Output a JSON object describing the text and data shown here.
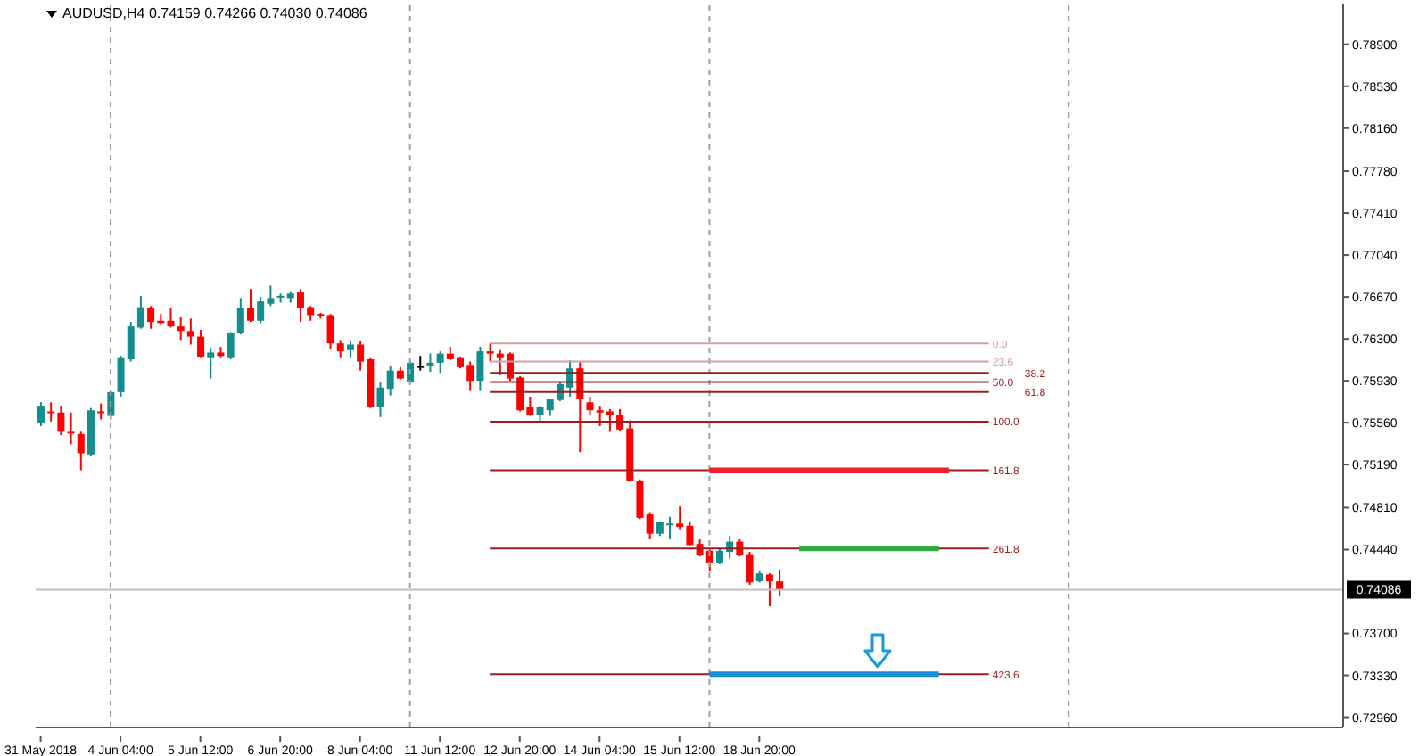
{
  "chart_data": {
    "type": "candlestick",
    "title": "AUDUSD,H4 0.74159 0.74266 0.74030 0.74086",
    "categories": [
      "31 May 2018",
      null,
      null,
      null,
      null,
      null,
      null,
      null,
      "4 Jun 04:00",
      null,
      null,
      null,
      null,
      null,
      null,
      null,
      "5 Jun 12:00",
      null,
      null,
      null,
      null,
      null,
      null,
      null,
      "6 Jun 20:00",
      null,
      null,
      null,
      null,
      null,
      null,
      null,
      "8 Jun 04:00",
      null,
      null,
      null,
      null,
      null,
      null,
      null,
      "11 Jun 12:00",
      null,
      null,
      null,
      null,
      null,
      null,
      null,
      "12 Jun 20:00",
      null,
      null,
      null,
      null,
      null,
      null,
      null,
      "14 Jun 04:00",
      null,
      null,
      null,
      null,
      null,
      null,
      null,
      "15 Jun 12:00",
      null,
      null,
      null,
      null,
      null,
      null,
      null,
      "18 Jun 20:00",
      null,
      null,
      null,
      null,
      null,
      null,
      null,
      null,
      null,
      null,
      null,
      null,
      null,
      null,
      null,
      null,
      null,
      null,
      null,
      null,
      null,
      null,
      null,
      null,
      null,
      null,
      null,
      null,
      null,
      null,
      null,
      null,
      null,
      null,
      null,
      null,
      null,
      null,
      null,
      null,
      null,
      null,
      null,
      null,
      null,
      null,
      null,
      null,
      null,
      null,
      null,
      null,
      null,
      null,
      null,
      null,
      null,
      null
    ],
    "ohlc": [
      [
        0.7556,
        0.7574,
        0.7553,
        0.7571
      ],
      [
        0.7566,
        0.7574,
        0.7557,
        0.7565
      ],
      [
        0.7565,
        0.7571,
        0.7545,
        0.7548
      ],
      [
        0.7548,
        0.7565,
        0.7537,
        0.7547
      ],
      [
        0.7546,
        0.7548,
        0.7514,
        0.7529
      ],
      [
        0.7528,
        0.7569,
        0.7527,
        0.7567
      ],
      [
        0.7566,
        0.7573,
        0.7559,
        0.7565
      ],
      [
        0.7562,
        0.7584,
        0.7559,
        0.7583
      ],
      [
        0.7583,
        0.7615,
        0.7579,
        0.7613
      ],
      [
        0.7612,
        0.7645,
        0.761,
        0.7641
      ],
      [
        0.764,
        0.7668,
        0.7639,
        0.7658
      ],
      [
        0.7657,
        0.7659,
        0.7639,
        0.7645
      ],
      [
        0.7646,
        0.7652,
        0.7643,
        0.7644
      ],
      [
        0.7646,
        0.7657,
        0.764,
        0.7641
      ],
      [
        0.7641,
        0.7649,
        0.7629,
        0.7637
      ],
      [
        0.7637,
        0.7648,
        0.7625,
        0.7632
      ],
      [
        0.7632,
        0.7638,
        0.7613,
        0.7614
      ],
      [
        0.7613,
        0.7622,
        0.7595,
        0.7618
      ],
      [
        0.7618,
        0.7623,
        0.7613,
        0.7615
      ],
      [
        0.7613,
        0.7636,
        0.7612,
        0.7635
      ],
      [
        0.7635,
        0.7666,
        0.7634,
        0.7657
      ],
      [
        0.7657,
        0.7674,
        0.7645,
        0.7646
      ],
      [
        0.7646,
        0.7667,
        0.7644,
        0.7663
      ],
      [
        0.7661,
        0.7677,
        0.7659,
        0.7666
      ],
      [
        0.7667,
        0.767,
        0.7662,
        0.7668
      ],
      [
        0.7666,
        0.7672,
        0.7662,
        0.767
      ],
      [
        0.7671,
        0.7674,
        0.7645,
        0.7657
      ],
      [
        0.7658,
        0.7659,
        0.7646,
        0.7651
      ],
      [
        0.7652,
        0.7653,
        0.7648,
        0.765
      ],
      [
        0.7651,
        0.7652,
        0.7621,
        0.7626
      ],
      [
        0.7626,
        0.7629,
        0.7613,
        0.7619
      ],
      [
        0.762,
        0.7628,
        0.7613,
        0.7625
      ],
      [
        0.7625,
        0.7628,
        0.7602,
        0.761
      ],
      [
        0.7612,
        0.7613,
        0.7569,
        0.757
      ],
      [
        0.757,
        0.7592,
        0.7561,
        0.7587
      ],
      [
        0.7586,
        0.7606,
        0.758,
        0.7602
      ],
      [
        0.7602,
        0.7605,
        0.7594,
        0.7595
      ],
      [
        0.7592,
        0.761,
        0.7591,
        0.7609
      ],
      [
        0.7606,
        0.7615,
        0.7602,
        0.7606
      ],
      [
        0.7606,
        0.7617,
        0.7601,
        0.7609
      ],
      [
        0.7609,
        0.7619,
        0.76,
        0.7617
      ],
      [
        0.7617,
        0.7623,
        0.7611,
        0.7612
      ],
      [
        0.7613,
        0.7614,
        0.7604,
        0.7605
      ],
      [
        0.7607,
        0.761,
        0.7584,
        0.7593
      ],
      [
        0.7593,
        0.7623,
        0.7584,
        0.7619
      ],
      [
        0.7619,
        0.7626,
        0.761,
        0.7617
      ],
      [
        0.7617,
        0.762,
        0.7598,
        0.7613
      ],
      [
        0.7617,
        0.7618,
        0.7593,
        0.7595
      ],
      [
        0.7596,
        0.7597,
        0.7566,
        0.7567
      ],
      [
        0.757,
        0.7579,
        0.7562,
        0.7563
      ],
      [
        0.7563,
        0.7571,
        0.7557,
        0.757
      ],
      [
        0.7567,
        0.7577,
        0.7562,
        0.7577
      ],
      [
        0.7576,
        0.7592,
        0.7575,
        0.759
      ],
      [
        0.7587,
        0.7611,
        0.7579,
        0.7604
      ],
      [
        0.7604,
        0.761,
        0.753,
        0.7577
      ],
      [
        0.7574,
        0.7579,
        0.7563,
        0.7567
      ],
      [
        0.7567,
        0.7571,
        0.7553,
        0.7565
      ],
      [
        0.7566,
        0.7568,
        0.7548,
        0.7563
      ],
      [
        0.7563,
        0.7568,
        0.7549,
        0.755
      ],
      [
        0.7551,
        0.7558,
        0.7504,
        0.7505
      ],
      [
        0.7505,
        0.7506,
        0.7471,
        0.7472
      ],
      [
        0.7475,
        0.7477,
        0.7453,
        0.7458
      ],
      [
        0.7458,
        0.7469,
        0.7456,
        0.7468
      ],
      [
        0.7466,
        0.7473,
        0.7453,
        0.7467
      ],
      [
        0.7467,
        0.7482,
        0.7462,
        0.7464
      ],
      [
        0.7465,
        0.7469,
        0.7447,
        0.7448
      ],
      [
        0.7449,
        0.7453,
        0.7438,
        0.7439
      ],
      [
        0.7443,
        0.7444,
        0.7425,
        0.7432
      ],
      [
        0.7432,
        0.7445,
        0.7431,
        0.7443
      ],
      [
        0.7442,
        0.7456,
        0.7436,
        0.7451
      ],
      [
        0.7451,
        0.7453,
        0.7438,
        0.7439
      ],
      [
        0.744,
        0.7442,
        0.7413,
        0.7415
      ],
      [
        0.7416,
        0.7425,
        0.7415,
        0.7423
      ],
      [
        0.7422,
        0.7423,
        0.7394,
        0.7416
      ],
      [
        0.74159,
        0.74266,
        0.7403,
        0.74086
      ],
      null,
      null,
      null,
      null,
      null,
      null,
      null,
      null,
      null,
      null,
      null,
      null,
      null,
      null,
      null,
      null,
      null,
      null,
      null,
      null,
      null,
      null,
      null,
      null,
      null,
      null,
      null,
      null,
      null,
      null,
      null,
      null,
      null,
      null,
      null,
      null,
      null,
      null,
      null,
      null,
      null,
      null,
      null,
      null,
      null,
      null,
      null,
      null,
      null,
      null,
      null,
      null,
      null,
      null,
      null,
      null
    ],
    "colors": [
      "#138d8d",
      "#ff0000",
      "#ff0000",
      "#ff0000",
      "#ff0000",
      "#138d8d",
      "#ff0000",
      "#138d8d",
      "#138d8d",
      "#138d8d",
      "#138d8d",
      "#ff0000",
      "#ff0000",
      "#ff0000",
      "#ff0000",
      "#ff0000",
      "#ff0000",
      "#138d8d",
      "#ff0000",
      "#138d8d",
      "#138d8d",
      "#ff0000",
      "#138d8d",
      "#138d8d",
      "#138d8d",
      "#138d8d",
      "#ff0000",
      "#ff0000",
      "#ff0000",
      "#ff0000",
      "#ff0000",
      "#138d8d",
      "#ff0000",
      "#ff0000",
      "#138d8d",
      "#138d8d",
      "#ff0000",
      "#138d8d",
      "#000000",
      "#138d8d",
      "#138d8d",
      "#ff0000",
      "#ff0000",
      "#ff0000",
      "#138d8d",
      "#ff0000",
      "#ff0000",
      "#ff0000",
      "#ff0000",
      "#ff0000",
      "#138d8d",
      "#138d8d",
      "#138d8d",
      "#138d8d",
      "#ff0000",
      "#ff0000",
      "#ff0000",
      "#ff0000",
      "#ff0000",
      "#ff0000",
      "#ff0000",
      "#ff0000",
      "#138d8d",
      "#138d8d",
      "#ff0000",
      "#ff0000",
      "#ff0000",
      "#ff0000",
      "#138d8d",
      "#138d8d",
      "#ff0000",
      "#ff0000",
      "#138d8d",
      "#ff0000",
      "#ff0000",
      null,
      null,
      null,
      null,
      null,
      null,
      null,
      null,
      null,
      null,
      null,
      null,
      null,
      null,
      null,
      null,
      null,
      null,
      null,
      null,
      null,
      null,
      null,
      null,
      null,
      null,
      null,
      null,
      null,
      null,
      null,
      null,
      null,
      null,
      null,
      null,
      null,
      null,
      null,
      null,
      null,
      null,
      null,
      null,
      null,
      null,
      null,
      null,
      null,
      null,
      null,
      null,
      null,
      null,
      null,
      null
    ],
    "series": [
      {
        "type": "line",
        "name": "0.0",
        "color": "#d4a0a0",
        "values": [
          null,
          null,
          null,
          null,
          null,
          null,
          null,
          null,
          null,
          null,
          null,
          null,
          null,
          null,
          null,
          null,
          null,
          null,
          null,
          null,
          null,
          null,
          null,
          null,
          null,
          null,
          null,
          null,
          null,
          null,
          null,
          null,
          null,
          null,
          null,
          null,
          null,
          null,
          null,
          null,
          null,
          null,
          null,
          null,
          null,
          0.7626,
          null,
          null,
          null,
          null,
          null,
          null,
          null,
          null,
          null,
          null,
          null,
          null,
          null,
          null,
          null,
          null,
          null,
          null,
          null,
          null,
          null,
          null,
          null,
          null,
          null,
          null,
          null,
          null,
          null,
          null,
          null,
          null,
          null,
          null,
          null,
          null,
          null,
          null,
          null,
          null,
          null,
          null,
          null,
          null,
          null,
          null,
          null,
          null,
          null,
          0.7626,
          null,
          null,
          null,
          null,
          null,
          null,
          null,
          null,
          null,
          null,
          null,
          null,
          null,
          null,
          null,
          null,
          null,
          null,
          null,
          null,
          null,
          null,
          null,
          null,
          null,
          null,
          null,
          null,
          null,
          null,
          null,
          null,
          null,
          null,
          null
        ]
      },
      {
        "type": "line",
        "name": "23.6",
        "color": "#d4a0a0",
        "values": [
          null,
          null,
          null,
          null,
          null,
          null,
          null,
          null,
          null,
          null,
          null,
          null,
          null,
          null,
          null,
          null,
          null,
          null,
          null,
          null,
          null,
          null,
          null,
          null,
          null,
          null,
          null,
          null,
          null,
          null,
          null,
          null,
          null,
          null,
          null,
          null,
          null,
          null,
          null,
          null,
          null,
          null,
          null,
          null,
          null,
          0.761,
          null,
          null,
          null,
          null,
          null,
          null,
          null,
          null,
          null,
          null,
          null,
          null,
          null,
          null,
          null,
          null,
          null,
          null,
          null,
          null,
          null,
          null,
          null,
          null,
          null,
          null,
          null,
          null,
          null,
          null,
          null,
          null,
          null,
          null,
          null,
          null,
          null,
          null,
          null,
          null,
          null,
          null,
          null,
          null,
          null,
          null,
          null,
          null,
          null,
          0.761,
          null,
          null,
          null,
          null,
          null,
          null,
          null,
          null,
          null,
          null,
          null,
          null,
          null,
          null,
          null,
          null,
          null,
          null,
          null,
          null,
          null,
          null,
          null,
          null,
          null,
          null,
          null,
          null,
          null,
          null,
          null,
          null,
          null,
          null,
          null
        ]
      },
      {
        "type": "line",
        "name": "38.2",
        "color": "#9b1c1c",
        "values": [
          null,
          null,
          null,
          null,
          null,
          null,
          null,
          null,
          null,
          null,
          null,
          null,
          null,
          null,
          null,
          null,
          null,
          null,
          null,
          null,
          null,
          null,
          null,
          null,
          null,
          null,
          null,
          null,
          null,
          null,
          null,
          null,
          null,
          null,
          null,
          null,
          null,
          null,
          null,
          null,
          null,
          null,
          null,
          null,
          null,
          0.76,
          null,
          null,
          null,
          null,
          null,
          null,
          null,
          null,
          null,
          null,
          null,
          null,
          null,
          null,
          null,
          null,
          null,
          null,
          null,
          null,
          null,
          null,
          null,
          null,
          null,
          null,
          null,
          null,
          null,
          null,
          null,
          null,
          null,
          null,
          null,
          null,
          null,
          null,
          null,
          null,
          null,
          null,
          null,
          null,
          null,
          null,
          null,
          null,
          null,
          0.76,
          null,
          null,
          null,
          null,
          null,
          null,
          null,
          null,
          null,
          null,
          null,
          null,
          null,
          null,
          null,
          null,
          null,
          null,
          null,
          null,
          null,
          null,
          null,
          null,
          null,
          null,
          null,
          null,
          null,
          null,
          null,
          null,
          null,
          null,
          null
        ]
      },
      {
        "type": "line",
        "name": "50.0",
        "color": "#9b1c1c",
        "values": [
          null,
          null,
          null,
          null,
          null,
          null,
          null,
          null,
          null,
          null,
          null,
          null,
          null,
          null,
          null,
          null,
          null,
          null,
          null,
          null,
          null,
          null,
          null,
          null,
          null,
          null,
          null,
          null,
          null,
          null,
          null,
          null,
          null,
          null,
          null,
          null,
          null,
          null,
          null,
          null,
          null,
          null,
          null,
          null,
          null,
          0.7592,
          null,
          null,
          null,
          null,
          null,
          null,
          null,
          null,
          null,
          null,
          null,
          null,
          null,
          null,
          null,
          null,
          null,
          null,
          null,
          null,
          null,
          null,
          null,
          null,
          null,
          null,
          null,
          null,
          null,
          null,
          null,
          null,
          null,
          null,
          null,
          null,
          null,
          null,
          null,
          null,
          null,
          null,
          null,
          null,
          null,
          null,
          null,
          null,
          null,
          0.7592,
          null,
          null,
          null,
          null,
          null,
          null,
          null,
          null,
          null,
          null,
          null,
          null,
          null,
          null,
          null,
          null,
          null,
          null,
          null,
          null,
          null,
          null,
          null,
          null,
          null,
          null,
          null,
          null,
          null,
          null,
          null,
          null,
          null,
          null,
          null
        ]
      },
      {
        "type": "line",
        "name": "61.8",
        "color": "#9b1c1c",
        "values": [
          null,
          null,
          null,
          null,
          null,
          null,
          null,
          null,
          null,
          null,
          null,
          null,
          null,
          null,
          null,
          null,
          null,
          null,
          null,
          null,
          null,
          null,
          null,
          null,
          null,
          null,
          null,
          null,
          null,
          null,
          null,
          null,
          null,
          null,
          null,
          null,
          null,
          null,
          null,
          null,
          null,
          null,
          null,
          null,
          null,
          0.7583,
          null,
          null,
          null,
          null,
          null,
          null,
          null,
          null,
          null,
          null,
          null,
          null,
          null,
          null,
          null,
          null,
          null,
          null,
          null,
          null,
          null,
          null,
          null,
          null,
          null,
          null,
          null,
          null,
          null,
          null,
          null,
          null,
          null,
          null,
          null,
          null,
          null,
          null,
          null,
          null,
          null,
          null,
          null,
          null,
          null,
          null,
          null,
          null,
          null,
          0.7583,
          null,
          null,
          null,
          null,
          null,
          null,
          null,
          null,
          null,
          null,
          null,
          null,
          null,
          null,
          null,
          null,
          null,
          null,
          null,
          null,
          null,
          null,
          null,
          null,
          null,
          null,
          null,
          null,
          null,
          null,
          null,
          null,
          null,
          null,
          null
        ]
      },
      {
        "type": "line",
        "name": "100.0",
        "color": "#9b1c1c",
        "values": [
          null,
          null,
          null,
          null,
          null,
          null,
          null,
          null,
          null,
          null,
          null,
          null,
          null,
          null,
          null,
          null,
          null,
          null,
          null,
          null,
          null,
          null,
          null,
          null,
          null,
          null,
          null,
          null,
          null,
          null,
          null,
          null,
          null,
          null,
          null,
          null,
          null,
          null,
          null,
          null,
          null,
          null,
          null,
          null,
          null,
          0.7557,
          null,
          null,
          null,
          null,
          null,
          null,
          null,
          null,
          null,
          null,
          null,
          null,
          null,
          null,
          null,
          null,
          null,
          null,
          null,
          null,
          null,
          null,
          null,
          null,
          null,
          null,
          null,
          null,
          null,
          null,
          null,
          null,
          null,
          null,
          null,
          null,
          null,
          null,
          null,
          null,
          null,
          null,
          null,
          null,
          null,
          null,
          null,
          null,
          null,
          0.7557,
          null,
          null,
          null,
          null,
          null,
          null,
          null,
          null,
          null,
          null,
          null,
          null,
          null,
          null,
          null,
          null,
          null,
          null,
          null,
          null,
          null,
          null,
          null,
          null,
          null,
          null,
          null,
          null,
          null,
          null,
          null,
          null,
          null,
          null,
          null
        ]
      },
      {
        "type": "line",
        "name": "161.8",
        "color": "#9b1c1c",
        "values": [
          null,
          null,
          null,
          null,
          null,
          null,
          null,
          null,
          null,
          null,
          null,
          null,
          null,
          null,
          null,
          null,
          null,
          null,
          null,
          null,
          null,
          null,
          null,
          null,
          null,
          null,
          null,
          null,
          null,
          null,
          null,
          null,
          null,
          null,
          null,
          null,
          null,
          null,
          null,
          null,
          null,
          null,
          null,
          null,
          null,
          0.7514,
          null,
          null,
          null,
          null,
          null,
          null,
          null,
          null,
          null,
          null,
          null,
          null,
          null,
          null,
          null,
          null,
          null,
          null,
          null,
          null,
          null,
          null,
          null,
          null,
          null,
          null,
          null,
          null,
          null,
          null,
          null,
          null,
          null,
          null,
          null,
          null,
          null,
          null,
          null,
          null,
          null,
          null,
          null,
          null,
          null,
          null,
          null,
          null,
          null,
          0.7514,
          null,
          null,
          null,
          null,
          null,
          null,
          null,
          null,
          null,
          null,
          null,
          null,
          null,
          null,
          null,
          null,
          null,
          null,
          null,
          null,
          null,
          null,
          null,
          null,
          null,
          null,
          null,
          null,
          null,
          null,
          null,
          null,
          null,
          null,
          null
        ]
      },
      {
        "type": "line",
        "name": "261.8",
        "color": "#9b1c1c",
        "values": [
          null,
          null,
          null,
          null,
          null,
          null,
          null,
          null,
          null,
          null,
          null,
          null,
          null,
          null,
          null,
          null,
          null,
          null,
          null,
          null,
          null,
          null,
          null,
          null,
          null,
          null,
          null,
          null,
          null,
          null,
          null,
          null,
          null,
          null,
          null,
          null,
          null,
          null,
          null,
          null,
          null,
          null,
          null,
          null,
          null,
          0.7445,
          null,
          null,
          null,
          null,
          null,
          null,
          null,
          null,
          null,
          null,
          null,
          null,
          null,
          null,
          null,
          null,
          null,
          null,
          null,
          null,
          null,
          null,
          null,
          null,
          null,
          null,
          null,
          null,
          null,
          null,
          null,
          null,
          null,
          null,
          null,
          null,
          null,
          null,
          null,
          null,
          null,
          null,
          null,
          null,
          null,
          null,
          null,
          null,
          null,
          0.7445,
          null,
          null,
          null,
          null,
          null,
          null,
          null,
          null,
          null,
          null,
          null,
          null,
          null,
          null,
          null,
          null,
          null,
          null,
          null,
          null,
          null,
          null,
          null,
          null,
          null,
          null,
          null,
          null,
          null,
          null,
          null,
          null,
          null,
          null,
          null
        ]
      },
      {
        "type": "line",
        "name": "423.6",
        "color": "#9b1c1c",
        "values": [
          null,
          null,
          null,
          null,
          null,
          null,
          null,
          null,
          null,
          null,
          null,
          null,
          null,
          null,
          null,
          null,
          null,
          null,
          null,
          null,
          null,
          null,
          null,
          null,
          null,
          null,
          null,
          null,
          null,
          null,
          null,
          null,
          null,
          null,
          null,
          null,
          null,
          null,
          null,
          null,
          null,
          null,
          null,
          null,
          null,
          0.7334,
          null,
          null,
          null,
          null,
          null,
          null,
          null,
          null,
          null,
          null,
          null,
          null,
          null,
          null,
          null,
          null,
          null,
          null,
          null,
          null,
          null,
          null,
          null,
          null,
          null,
          null,
          null,
          null,
          null,
          null,
          null,
          null,
          null,
          null,
          null,
          null,
          null,
          null,
          null,
          null,
          null,
          null,
          null,
          null,
          null,
          null,
          null,
          null,
          null,
          0.7334,
          null,
          null,
          null,
          null,
          null,
          null,
          null,
          null,
          null,
          null,
          null,
          null,
          null,
          null,
          null,
          null,
          null,
          null,
          null,
          null,
          null,
          null,
          null,
          null,
          null,
          null,
          null,
          null,
          null,
          null,
          null,
          null,
          null,
          null,
          null
        ]
      },
      {
        "type": "line",
        "color": "#f01e28",
        "values": [
          null,
          null,
          null,
          null,
          null,
          null,
          null,
          null,
          null,
          null,
          null,
          null,
          null,
          null,
          null,
          null,
          null,
          null,
          null,
          null,
          null,
          null,
          null,
          null,
          null,
          null,
          null,
          null,
          null,
          null,
          null,
          null,
          null,
          null,
          null,
          null,
          null,
          null,
          null,
          null,
          null,
          null,
          null,
          null,
          null,
          null,
          null,
          null,
          null,
          null,
          null,
          null,
          null,
          null,
          null,
          null,
          null,
          null,
          null,
          null,
          null,
          null,
          null,
          null,
          null,
          null,
          null,
          0.7514,
          null,
          null,
          null,
          null,
          null,
          null,
          null,
          null,
          null,
          null,
          null,
          null,
          null,
          null,
          null,
          null,
          null,
          null,
          null,
          null,
          null,
          null,
          null,
          0.7514,
          null,
          null,
          null,
          null,
          null,
          null,
          null,
          null,
          null,
          null,
          null,
          null,
          null,
          null,
          null,
          null,
          null,
          null,
          null,
          null,
          null,
          null,
          null,
          null,
          null,
          null,
          null,
          null,
          null,
          null,
          null,
          null,
          null,
          null,
          null,
          null,
          null,
          null,
          null
        ]
      },
      {
        "type": "line",
        "color": "#2eaa3e",
        "values": [
          null,
          null,
          null,
          null,
          null,
          null,
          null,
          null,
          null,
          null,
          null,
          null,
          null,
          null,
          null,
          null,
          null,
          null,
          null,
          null,
          null,
          null,
          null,
          null,
          null,
          null,
          null,
          null,
          null,
          null,
          null,
          null,
          null,
          null,
          null,
          null,
          null,
          null,
          null,
          null,
          null,
          null,
          null,
          null,
          null,
          null,
          null,
          null,
          null,
          null,
          null,
          null,
          null,
          null,
          null,
          null,
          null,
          null,
          null,
          null,
          null,
          null,
          null,
          null,
          null,
          null,
          null,
          null,
          null,
          null,
          null,
          null,
          null,
          null,
          null,
          null,
          0.7445,
          null,
          null,
          null,
          null,
          null,
          null,
          null,
          null,
          null,
          null,
          null,
          null,
          null,
          0.7445,
          null,
          null,
          null,
          null,
          null,
          null,
          null,
          null,
          null,
          null,
          null,
          null,
          null,
          null,
          null,
          null,
          null,
          null,
          null,
          null,
          null,
          null,
          null,
          null,
          null,
          null,
          null,
          null,
          null,
          null,
          null,
          null,
          null,
          null,
          null,
          null,
          null,
          null,
          null,
          null
        ]
      },
      {
        "type": "line",
        "color": "#1a8fd8",
        "values": [
          null,
          null,
          null,
          null,
          null,
          null,
          null,
          null,
          null,
          null,
          null,
          null,
          null,
          null,
          null,
          null,
          null,
          null,
          null,
          null,
          null,
          null,
          null,
          null,
          null,
          null,
          null,
          null,
          null,
          null,
          null,
          null,
          null,
          null,
          null,
          null,
          null,
          null,
          null,
          null,
          null,
          null,
          null,
          null,
          null,
          null,
          null,
          null,
          null,
          null,
          null,
          null,
          null,
          null,
          null,
          null,
          null,
          null,
          null,
          null,
          null,
          null,
          null,
          null,
          null,
          null,
          null,
          0.7334,
          null,
          null,
          null,
          null,
          null,
          null,
          null,
          null,
          null,
          null,
          null,
          null,
          null,
          null,
          null,
          null,
          null,
          null,
          null,
          null,
          null,
          null,
          0.7334,
          null,
          null,
          null,
          null,
          null,
          null,
          null,
          null,
          null,
          null,
          null,
          null,
          null,
          null,
          null,
          null,
          null,
          null,
          null,
          null,
          null,
          null,
          null,
          null,
          null,
          null,
          null,
          null,
          null,
          null,
          null,
          null,
          null,
          null,
          null,
          null,
          null,
          null,
          null,
          null
        ]
      }
    ],
    "ref_lines": [
      {
        "axis": "y",
        "value": 0.74086,
        "label": "0.74086",
        "color": "#c0c0c0",
        "line_style": "solid"
      }
    ],
    "ylim": [
      0.7287,
      0.7926
    ],
    "yticks": [
      {
        "value": 0.7296,
        "label": "0.72960"
      },
      {
        "value": 0.7333,
        "label": "0.73330"
      },
      {
        "value": 0.737,
        "label": "0.73700"
      },
      {
        "value": 0.7444,
        "label": "0.74440"
      },
      {
        "value": 0.7481,
        "label": "0.74810"
      },
      {
        "value": 0.7519,
        "label": "0.75190"
      },
      {
        "value": 0.7556,
        "label": "0.75560"
      },
      {
        "value": 0.7593,
        "label": "0.75930"
      },
      {
        "value": 0.763,
        "label": "0.76300"
      },
      {
        "value": 0.7667,
        "label": "0.76670"
      },
      {
        "value": 0.7704,
        "label": "0.77040"
      },
      {
        "value": 0.7741,
        "label": "0.77410"
      },
      {
        "value": 0.7778,
        "label": "0.77780"
      },
      {
        "value": 0.7816,
        "label": "0.78160"
      },
      {
        "value": 0.7853,
        "label": "0.78530"
      },
      {
        "value": 0.789,
        "label": "0.78900"
      }
    ]
  }
}
